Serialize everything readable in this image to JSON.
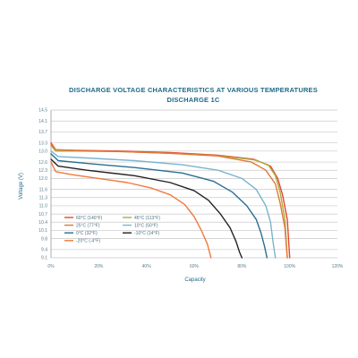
{
  "chart_data": {
    "type": "line",
    "title": "DISCHARGE VOLTAGE CHARACTERISTICS AT VARIOUS TEMPERATURES",
    "subtitle": "DISCHARGE 1C",
    "xlabel": "Capacity",
    "ylabel": "Voltage (V)",
    "xlim": [
      0,
      120
    ],
    "ylim": [
      9.1,
      14.5
    ],
    "xticks": [
      0,
      20,
      40,
      60,
      80,
      100,
      120
    ],
    "xtick_labels": [
      "0%",
      "20%",
      "40%",
      "60%",
      "80%",
      "100%",
      "120%"
    ],
    "yticks": [
      9.1,
      9.4,
      9.8,
      10.1,
      10.4,
      10.7,
      11.0,
      11.3,
      11.6,
      12.0,
      12.3,
      12.6,
      13.0,
      13.3,
      13.7,
      14.1,
      14.5
    ],
    "ytick_labels": [
      "9.1",
      "9.4",
      "9.8",
      "10.1",
      "10.4",
      "10.7",
      "11.0",
      "11.3",
      "11.6",
      "12.0",
      "12.3",
      "12.6",
      "13.0",
      "13.3",
      "13.7",
      "14.1",
      "14.5"
    ],
    "grid": true,
    "legend_position": "bottom-left",
    "series": [
      {
        "name": "60°C (140°F)",
        "color": "#e8462a",
        "points": [
          [
            0,
            13.3
          ],
          [
            2,
            13.05
          ],
          [
            10,
            13.03
          ],
          [
            30,
            13.0
          ],
          [
            50,
            12.95
          ],
          [
            70,
            12.85
          ],
          [
            85,
            12.7
          ],
          [
            92,
            12.45
          ],
          [
            95,
            12.0
          ],
          [
            97,
            11.4
          ],
          [
            99,
            10.5
          ],
          [
            100,
            9.1
          ]
        ]
      },
      {
        "name": "45°C (113°F)",
        "color": "#a6b042",
        "points": [
          [
            0,
            13.2
          ],
          [
            2,
            13.0
          ],
          [
            10,
            13.0
          ],
          [
            30,
            12.98
          ],
          [
            50,
            12.92
          ],
          [
            70,
            12.83
          ],
          [
            85,
            12.68
          ],
          [
            91,
            12.5
          ],
          [
            94,
            12.1
          ],
          [
            96,
            11.5
          ],
          [
            98,
            10.5
          ],
          [
            99,
            9.1
          ]
        ]
      },
      {
        "name": "25°C (77°F)",
        "color": "#e07838",
        "points": [
          [
            0,
            13.25
          ],
          [
            2,
            13.05
          ],
          [
            10,
            13.02
          ],
          [
            30,
            12.98
          ],
          [
            50,
            12.92
          ],
          [
            70,
            12.82
          ],
          [
            84,
            12.6
          ],
          [
            90,
            12.3
          ],
          [
            94,
            11.8
          ],
          [
            96,
            11.1
          ],
          [
            98,
            10.2
          ],
          [
            99,
            9.1
          ]
        ]
      },
      {
        "name": "10°C (50°F)",
        "color": "#7ab3cf",
        "points": [
          [
            0,
            13.0
          ],
          [
            3,
            12.8
          ],
          [
            15,
            12.75
          ],
          [
            35,
            12.65
          ],
          [
            55,
            12.5
          ],
          [
            70,
            12.3
          ],
          [
            80,
            12.0
          ],
          [
            86,
            11.6
          ],
          [
            90,
            11.0
          ],
          [
            92,
            10.4
          ],
          [
            93,
            9.7
          ],
          [
            94,
            9.1
          ]
        ]
      },
      {
        "name": "0°C (32°F)",
        "color": "#2a6e92",
        "points": [
          [
            0,
            12.9
          ],
          [
            3,
            12.65
          ],
          [
            15,
            12.55
          ],
          [
            35,
            12.4
          ],
          [
            55,
            12.2
          ],
          [
            68,
            11.9
          ],
          [
            76,
            11.5
          ],
          [
            82,
            11.0
          ],
          [
            86,
            10.5
          ],
          [
            88,
            10.0
          ],
          [
            89.5,
            9.5
          ],
          [
            90.5,
            9.1
          ]
        ]
      },
      {
        "name": "-10°C (14°F)",
        "color": "#222222",
        "points": [
          [
            0,
            12.7
          ],
          [
            3,
            12.45
          ],
          [
            15,
            12.3
          ],
          [
            35,
            12.1
          ],
          [
            50,
            11.85
          ],
          [
            60,
            11.55
          ],
          [
            66,
            11.2
          ],
          [
            71,
            10.7
          ],
          [
            75,
            10.2
          ],
          [
            77.5,
            9.7
          ],
          [
            79,
            9.3
          ],
          [
            80,
            9.1
          ]
        ]
      },
      {
        "name": "-20°C (-4°F)",
        "color": "#f0783a",
        "points": [
          [
            0,
            12.6
          ],
          [
            2,
            12.25
          ],
          [
            8,
            12.15
          ],
          [
            20,
            12.0
          ],
          [
            32,
            11.85
          ],
          [
            42,
            11.65
          ],
          [
            50,
            11.4
          ],
          [
            56,
            11.05
          ],
          [
            60,
            10.6
          ],
          [
            63,
            10.1
          ],
          [
            65.5,
            9.6
          ],
          [
            67,
            9.1
          ]
        ]
      }
    ]
  }
}
